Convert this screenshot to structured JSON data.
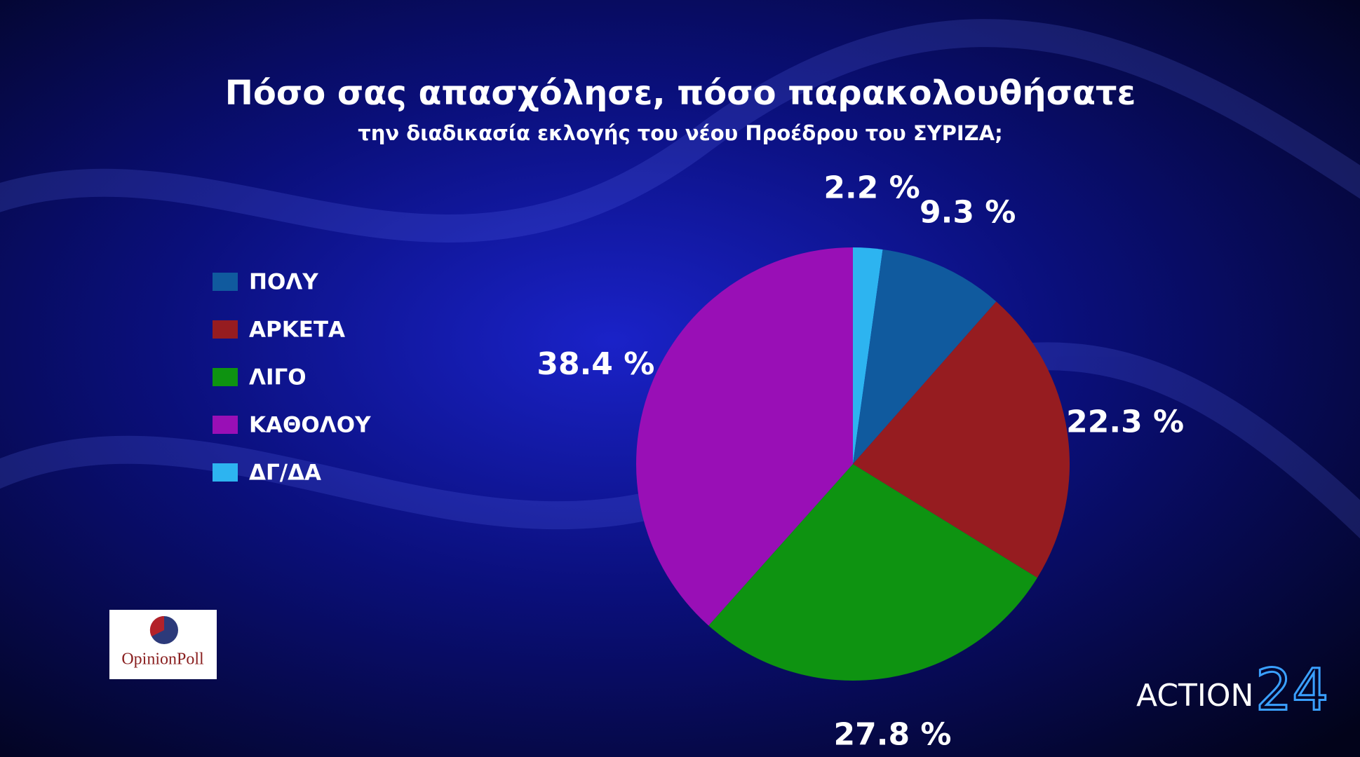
{
  "chart_data": {
    "type": "pie",
    "title": "Πόσο σας απασχόλησε, πόσο παρακολουθήσατε",
    "subtitle": "την διαδικασία εκλογής του νέου Προέδρου του ΣΥΡΙΖΑ;",
    "categories": [
      "ΠΟΛΥ",
      "ΑΡΚΕΤΑ",
      "ΛΙΓΟ",
      "ΚΑΘΟΛΟΥ",
      "ΔΓ/ΔΑ"
    ],
    "values": [
      9.3,
      22.3,
      27.8,
      38.4,
      2.2
    ],
    "value_labels": [
      "9.3 %",
      "22.3 %",
      "27.8 %",
      "38.4 %",
      "2.2 %"
    ],
    "colors": [
      "#105a9e",
      "#961c20",
      "#0e9311",
      "#990fb6",
      "#2db4f0"
    ],
    "legend": "left"
  },
  "logos": {
    "pollster": "OpinionPoll",
    "channel": "ACTION",
    "channel_number": "24"
  }
}
